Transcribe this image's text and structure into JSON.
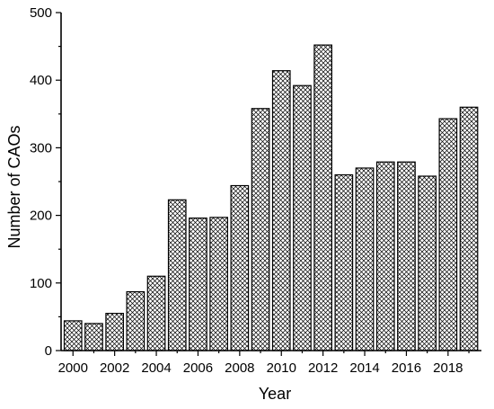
{
  "chart_data": {
    "type": "bar",
    "title": "",
    "xlabel": "Year",
    "ylabel": "Number of CAOs",
    "categories": [
      "2000",
      "2001",
      "2002",
      "2003",
      "2004",
      "2005",
      "2006",
      "2007",
      "2008",
      "2009",
      "2010",
      "2011",
      "2012",
      "2013",
      "2014",
      "2015",
      "2016",
      "2017",
      "2018",
      "2019"
    ],
    "values": [
      44,
      40,
      55,
      87,
      110,
      223,
      196,
      197,
      244,
      358,
      414,
      392,
      452,
      260,
      270,
      279,
      279,
      258,
      343,
      360
    ],
    "ylim": [
      0,
      500
    ],
    "yticks": [
      0,
      100,
      200,
      300,
      400,
      500
    ],
    "xtick_labels": [
      "2000",
      "2002",
      "2004",
      "2006",
      "2008",
      "2010",
      "2012",
      "2014",
      "2016",
      "2018"
    ],
    "grid": false,
    "legend": "none",
    "bar_pattern": "crosshatch",
    "bar_stroke_color": "#000000",
    "bar_fill_color": "#ffffff"
  }
}
